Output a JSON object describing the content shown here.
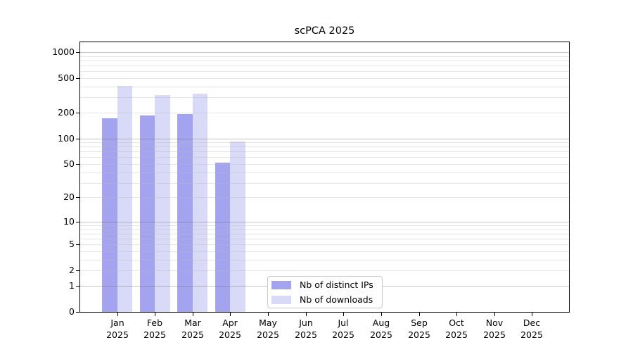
{
  "chart_data": {
    "type": "bar",
    "title": "scPCA 2025",
    "categories": [
      "Jan",
      "Feb",
      "Mar",
      "Apr",
      "May",
      "Jun",
      "Jul",
      "Aug",
      "Sep",
      "Oct",
      "Nov",
      "Dec"
    ],
    "category_year": "2025",
    "series": [
      {
        "name": "Nb of distinct IPs",
        "color": "#a3a3f0",
        "values": [
          170,
          185,
          192,
          52,
          0,
          0,
          0,
          0,
          0,
          0,
          0,
          0
        ]
      },
      {
        "name": "Nb of downloads",
        "color": "#d9d9f8",
        "values": [
          408,
          320,
          330,
          92,
          0,
          0,
          0,
          0,
          0,
          0,
          0,
          0
        ]
      }
    ],
    "y_scale": "log1p",
    "ylim": [
      0,
      1000
    ],
    "y_ticks": [
      0,
      1,
      2,
      5,
      10,
      20,
      50,
      100,
      200,
      500,
      1000
    ],
    "y_major_gridlines": [
      1,
      10,
      100,
      1000
    ],
    "grid": "on",
    "legend_position": "lower center",
    "colors": {
      "major_grid": "rgba(110,110,110,0.40)",
      "minor_grid": "rgba(187,187,187,0.38)",
      "axis": "#000000",
      "background": "#ffffff"
    }
  }
}
